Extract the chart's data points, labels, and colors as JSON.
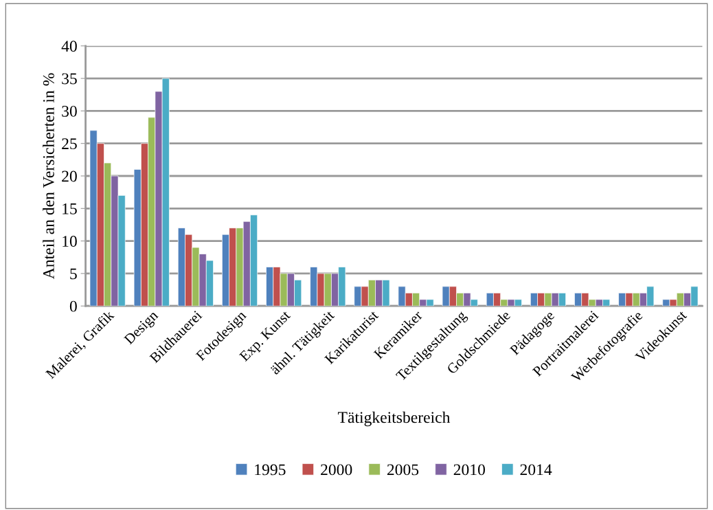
{
  "chart_data": {
    "type": "bar",
    "xlabel": "Tätigkeitsbereich",
    "ylabel": "Anteil an den Versicherten in %",
    "categories": [
      "Malerei, Grafik",
      "Design",
      "Bildhauerei",
      "Fotodesign",
      "Exp. Kunst",
      "ähnl. Tätigkeit",
      "Karikaturist",
      "Keramiker",
      "Textilgestaltung",
      "Goldschmiede",
      "Pädagoge",
      "Portraitmalerei",
      "Werbefotografie",
      "Videokunst"
    ],
    "series": [
      {
        "name": "1995",
        "color": "#4f81bd",
        "values": [
          27,
          21,
          12,
          11,
          6,
          6,
          3,
          3,
          3,
          2,
          2,
          2,
          2,
          1
        ]
      },
      {
        "name": "2000",
        "color": "#c0504d",
        "values": [
          25,
          25,
          11,
          12,
          6,
          5,
          3,
          2,
          3,
          2,
          2,
          2,
          2,
          1
        ]
      },
      {
        "name": "2005",
        "color": "#9bbb59",
        "values": [
          22,
          29,
          9,
          12,
          5,
          5,
          4,
          2,
          2,
          1,
          2,
          1,
          2,
          2
        ]
      },
      {
        "name": "2010",
        "color": "#8064a2",
        "values": [
          20,
          33,
          8,
          13,
          5,
          5,
          4,
          1,
          2,
          1,
          2,
          1,
          2,
          2
        ]
      },
      {
        "name": "2014",
        "color": "#4bacc6",
        "values": [
          17,
          35,
          7,
          14,
          4,
          6,
          4,
          1,
          1,
          1,
          2,
          1,
          3,
          3
        ]
      }
    ],
    "ylim": [
      0,
      40
    ],
    "yticks": [
      0,
      5,
      10,
      15,
      20,
      25,
      30,
      35,
      40
    ],
    "grid": "y",
    "legend": "bottom"
  }
}
